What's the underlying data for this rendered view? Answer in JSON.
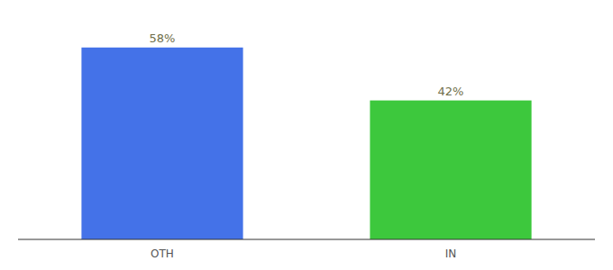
{
  "chart_data": {
    "type": "bar",
    "categories": [
      "OTH",
      "IN"
    ],
    "values": [
      58,
      42
    ],
    "value_labels": [
      "58%",
      "42%"
    ],
    "colors": [
      "#4472e8",
      "#3dc83d"
    ],
    "ylim": [
      0,
      68
    ],
    "data_labels": true,
    "tick_labels": "x",
    "grid": false
  }
}
